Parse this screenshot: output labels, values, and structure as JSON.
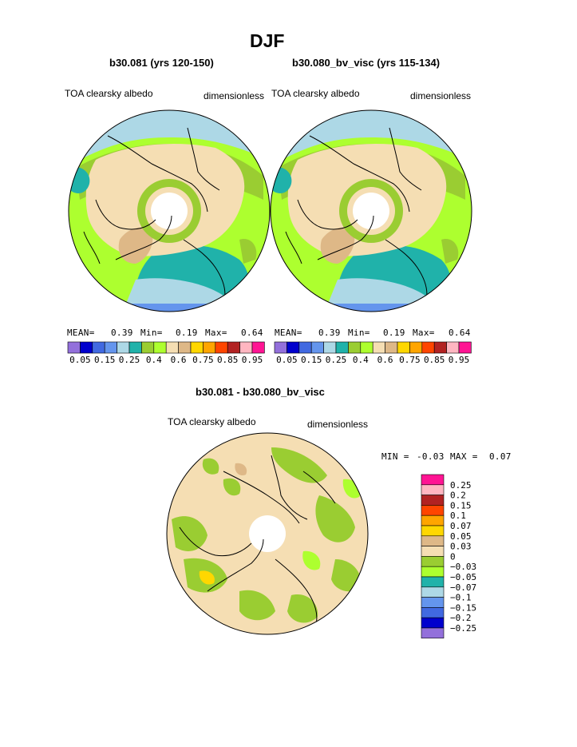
{
  "figure": {
    "title": "DJF",
    "panels": [
      {
        "title": "b30.081 (yrs 120-150)",
        "left_label": "TOA clearsky albedo",
        "right_label": "dimensionless",
        "stats": {
          "mean_label": "MEAN=",
          "mean": "0.39",
          "min_label": "Min=",
          "min": "0.19",
          "max_label": "Max=",
          "max": "0.64"
        }
      },
      {
        "title": "b30.080_bv_visc (yrs 115-134)",
        "left_label": "TOA clearsky albedo",
        "right_label": "dimensionless",
        "stats": {
          "mean_label": "MEAN=",
          "mean": "0.39",
          "min_label": "Min=",
          "min": "0.19",
          "max_label": "Max=",
          "max": "0.64"
        }
      },
      {
        "title": "b30.081 - b30.080_bv_visc",
        "left_label": "TOA clearsky albedo",
        "right_label": "dimensionless",
        "stats": {
          "min_label": "MIN =",
          "min": "-0.03",
          "max_label": "MAX =",
          "max": "0.07"
        }
      }
    ]
  },
  "chart_data": [
    {
      "type": "heatmap",
      "projection": "north polar stereographic",
      "title": "b30.081 (yrs 120-150)",
      "variable": "TOA clearsky albedo",
      "units": "dimensionless",
      "mean": 0.39,
      "min": 0.19,
      "max": 0.64,
      "colorbar": {
        "orientation": "horizontal",
        "levels": [
          0.05,
          0.15,
          0.25,
          0.4,
          0.6,
          0.75,
          0.85,
          0.95
        ],
        "colors": [
          "#9370db",
          "#0000cd",
          "#4169e1",
          "#6495ed",
          "#add8e6",
          "#20b2aa",
          "#9acd32",
          "#adff2f",
          "#f5deb3",
          "#deb887",
          "#ffd700",
          "#ffa500",
          "#ff4500",
          "#b22222",
          "#ffb6c1",
          "#ff1493"
        ]
      }
    },
    {
      "type": "heatmap",
      "projection": "north polar stereographic",
      "title": "b30.080_bv_visc (yrs 115-134)",
      "variable": "TOA clearsky albedo",
      "units": "dimensionless",
      "mean": 0.39,
      "min": 0.19,
      "max": 0.64,
      "colorbar": {
        "orientation": "horizontal",
        "levels": [
          0.05,
          0.15,
          0.25,
          0.4,
          0.6,
          0.75,
          0.85,
          0.95
        ],
        "colors": [
          "#9370db",
          "#0000cd",
          "#4169e1",
          "#6495ed",
          "#add8e6",
          "#20b2aa",
          "#9acd32",
          "#adff2f",
          "#f5deb3",
          "#deb887",
          "#ffd700",
          "#ffa500",
          "#ff4500",
          "#b22222",
          "#ffb6c1",
          "#ff1493"
        ]
      }
    },
    {
      "type": "heatmap",
      "projection": "north polar stereographic",
      "title": "b30.081 - b30.080_bv_visc",
      "variable": "TOA clearsky albedo",
      "units": "dimensionless",
      "min": -0.03,
      "max": 0.07,
      "colorbar": {
        "orientation": "vertical",
        "levels": [
          "0.25",
          "0.2",
          "0.15",
          "0.1",
          "0.07",
          "0.05",
          "0.03",
          "0",
          "−0.03",
          "−0.05",
          "−0.07",
          "−0.1",
          "−0.15",
          "−0.2",
          "−0.25"
        ],
        "colors": [
          "#ff1493",
          "#ffb6c1",
          "#b22222",
          "#ff4500",
          "#ffa500",
          "#ffd700",
          "#deb887",
          "#f5deb3",
          "#9acd32",
          "#adff2f",
          "#20b2aa",
          "#add8e6",
          "#6495ed",
          "#4169e1",
          "#0000cd",
          "#9370db"
        ]
      }
    }
  ]
}
